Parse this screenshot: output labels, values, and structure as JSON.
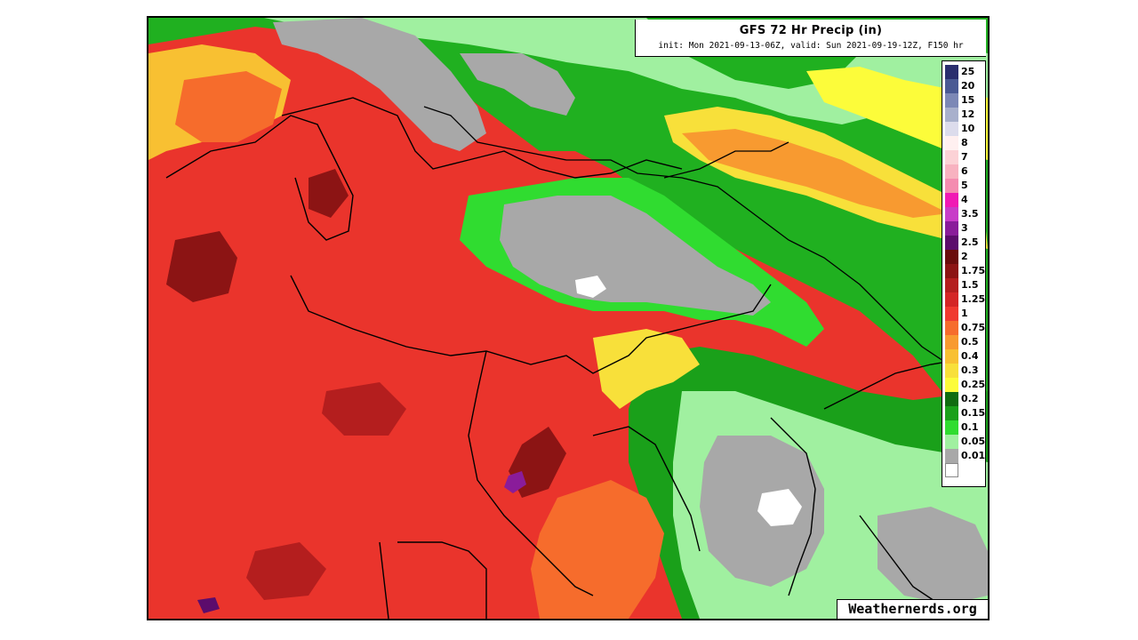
{
  "map": {
    "title": "GFS 72 Hr Precip (in)",
    "subtitle": "init: Mon 2021-09-13-06Z, valid: Sun 2021-09-19-12Z, F150 hr",
    "credit": "Weathernerds.org",
    "background_color": "#e8302a"
  },
  "legend": {
    "items": [
      {
        "label": "25",
        "color": "#2a2e6e"
      },
      {
        "label": "20",
        "color": "#4a5a94"
      },
      {
        "label": "15",
        "color": "#7c88b6"
      },
      {
        "label": "12",
        "color": "#a8b0cc"
      },
      {
        "label": "10",
        "color": "#dcdcec"
      },
      {
        "label": "8",
        "color": "#fff0f0"
      },
      {
        "label": "7",
        "color": "#fcd2d6"
      },
      {
        "label": "6",
        "color": "#f8b2c0"
      },
      {
        "label": "5",
        "color": "#f48cb0"
      },
      {
        "label": "4",
        "color": "#f01ab4"
      },
      {
        "label": "3.5",
        "color": "#c83cc8"
      },
      {
        "label": "3",
        "color": "#8a1c9a"
      },
      {
        "label": "2.5",
        "color": "#5c0c6c"
      },
      {
        "label": "2",
        "color": "#6a0c0c"
      },
      {
        "label": "1.75",
        "color": "#8c1414"
      },
      {
        "label": "1.5",
        "color": "#b41e1e"
      },
      {
        "label": "1.25",
        "color": "#d42626"
      },
      {
        "label": "1",
        "color": "#f03a30"
      },
      {
        "label": "0.75",
        "color": "#f66c2c"
      },
      {
        "label": "0.5",
        "color": "#f89a30"
      },
      {
        "label": "0.4",
        "color": "#f8c032"
      },
      {
        "label": "0.3",
        "color": "#f8e03a"
      },
      {
        "label": "0.25",
        "color": "#fcfc3a"
      },
      {
        "label": "0.2",
        "color": "#106c10"
      },
      {
        "label": "0.15",
        "color": "#1aa01a"
      },
      {
        "label": "0.1",
        "color": "#30dc30"
      },
      {
        "label": "0.05",
        "color": "#a0f0a0"
      },
      {
        "label": "0.01",
        "color": "#a8a8a8"
      },
      {
        "label": "",
        "color": "#ffffff"
      }
    ]
  }
}
